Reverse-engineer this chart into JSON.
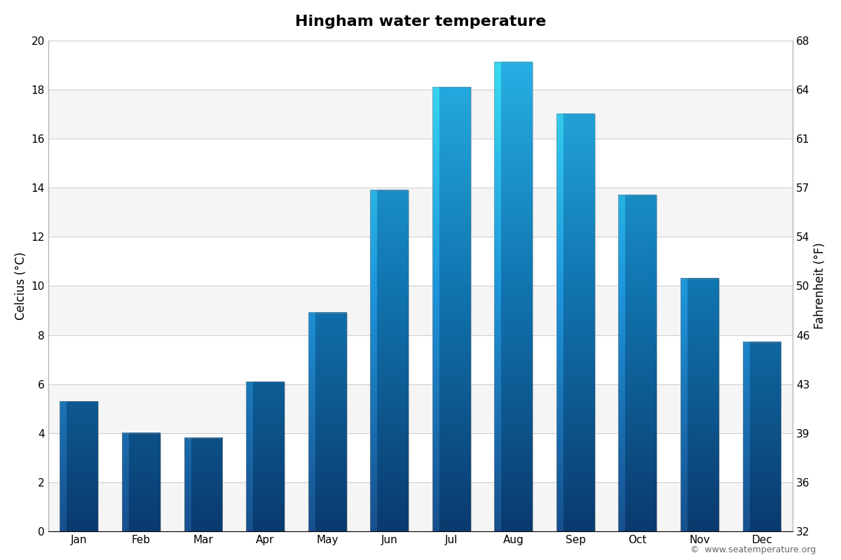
{
  "title": "Hingham water temperature",
  "months": [
    "Jan",
    "Feb",
    "Mar",
    "Apr",
    "May",
    "Jun",
    "Jul",
    "Aug",
    "Sep",
    "Oct",
    "Nov",
    "Dec"
  ],
  "celsius_values": [
    5.3,
    4.0,
    3.8,
    6.1,
    8.9,
    13.9,
    18.1,
    19.1,
    17.0,
    13.7,
    10.3,
    7.7
  ],
  "ylabel_left": "Celcius (°C)",
  "ylabel_right": "Fahrenheit (°F)",
  "ylim_celsius": [
    0,
    20
  ],
  "yticks_celsius": [
    0,
    2,
    4,
    6,
    8,
    10,
    12,
    14,
    16,
    18,
    20
  ],
  "yticks_fahrenheit": [
    32,
    36,
    39,
    43,
    46,
    50,
    54,
    57,
    61,
    64,
    68
  ],
  "color_bottom": "#0a3a6e",
  "color_mid": "#1175b0",
  "color_top": "#29b5e8",
  "background_color": "#ffffff",
  "band_color_light": "#f5f5f5",
  "band_color_white": "#ffffff",
  "watermark": "©  www.seatemperature.org",
  "title_fontsize": 16,
  "axis_label_fontsize": 12,
  "tick_fontsize": 11,
  "bar_width": 0.62
}
